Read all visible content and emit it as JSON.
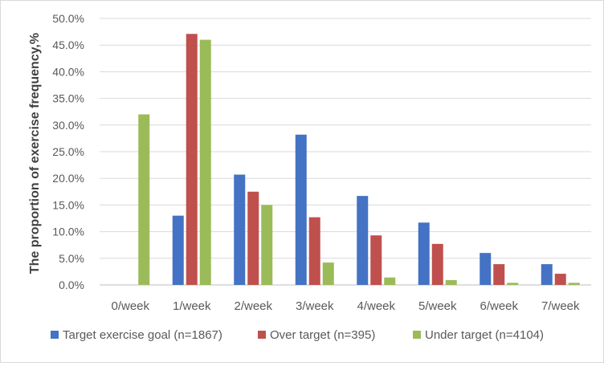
{
  "chart_data": {
    "type": "bar",
    "ylabel": "The proportion of exercise frequency,%",
    "xlabel": "",
    "categories": [
      "0/week",
      "1/week",
      "2/week",
      "3/week",
      "4/week",
      "5/week",
      "6/week",
      "7/week"
    ],
    "y_ticks": [
      "0.0%",
      "5.0%",
      "10.0%",
      "15.0%",
      "20.0%",
      "25.0%",
      "30.0%",
      "35.0%",
      "40.0%",
      "45.0%",
      "50.0%"
    ],
    "ylim": [
      0,
      50
    ],
    "grid": true,
    "legend_position": "bottom",
    "series": [
      {
        "name": "Target exercise goal (n=1867)",
        "color": "#4472C4",
        "values": [
          0,
          13.0,
          20.7,
          28.2,
          16.7,
          11.7,
          6.0,
          3.9
        ]
      },
      {
        "name": "Over target (n=395)",
        "color": "#C0504D",
        "values": [
          0,
          47.1,
          17.5,
          12.7,
          9.3,
          7.7,
          3.9,
          2.1
        ]
      },
      {
        "name": "Under target (n=4104)",
        "color": "#9BBB59",
        "values": [
          32.0,
          46.0,
          15.0,
          4.2,
          1.4,
          0.9,
          0.4,
          0.4
        ]
      }
    ]
  }
}
